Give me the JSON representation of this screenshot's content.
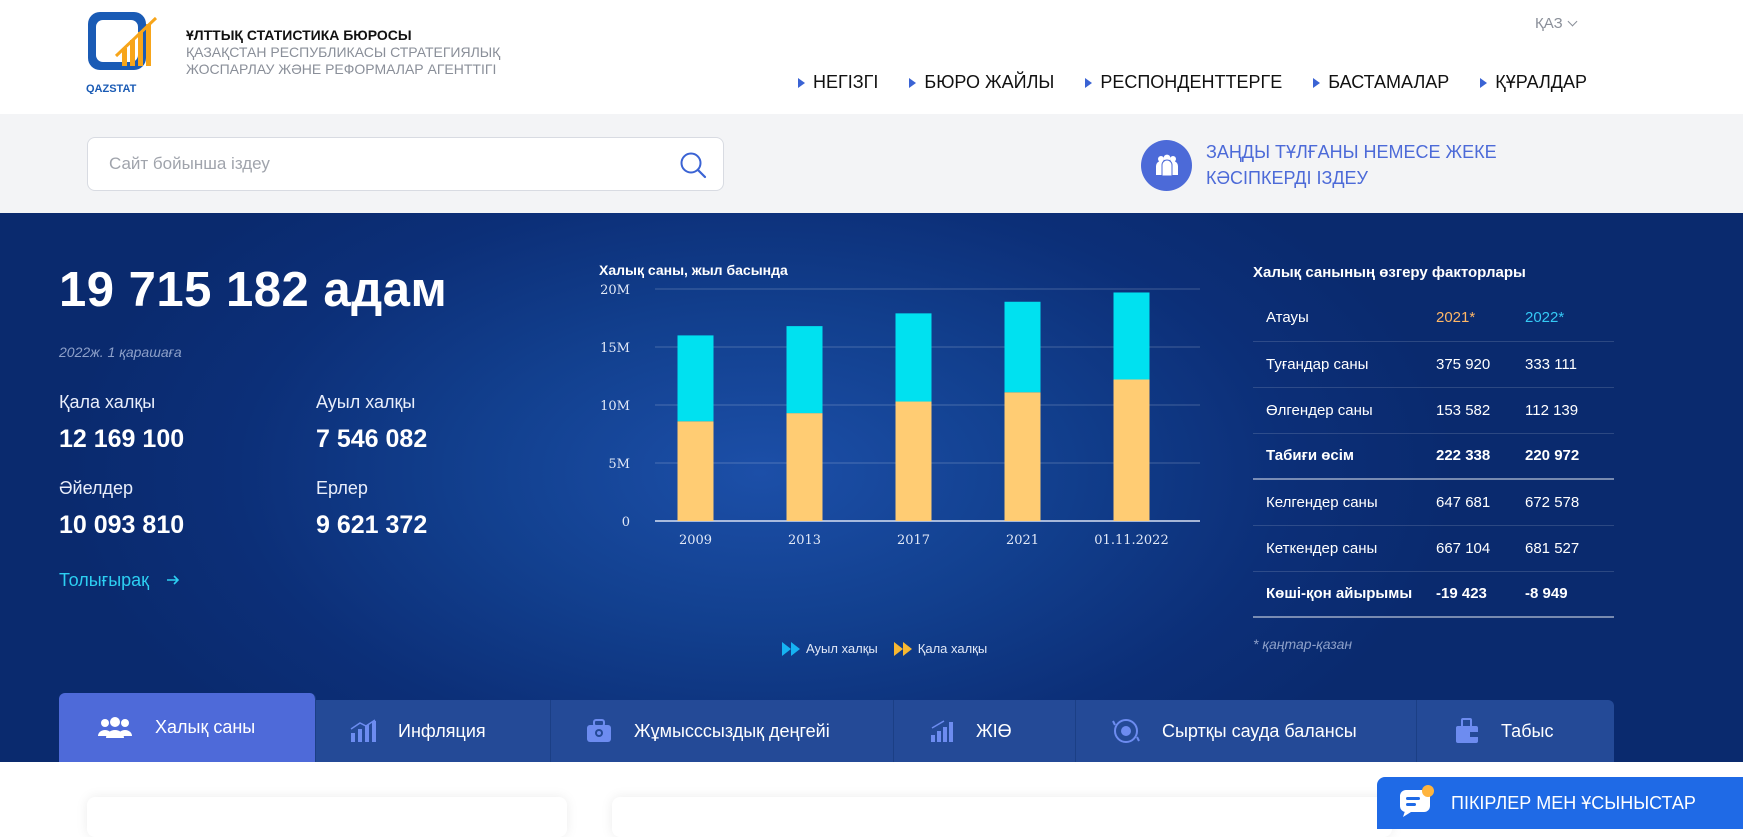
{
  "header": {
    "logo_text": "QAZSTAT",
    "org_line1": "ҰЛТТЫҚ СТАТИСТИКА БЮРОСЫ",
    "org_line2": "ҚАЗАҚСТАН РЕСПУБЛИКАСЫ СТРАТЕГИЯЛЫҚ",
    "org_line3": "ЖОСПАРЛАУ ЖӘНЕ РЕФОРМАЛАР АГЕНТТІГІ",
    "language": "ҚАЗ",
    "nav": [
      "НЕГІЗГІ",
      "БЮРО ЖАЙЛЫ",
      "РЕСПОНДЕНТТЕРГЕ",
      "БАСТАМАЛАР",
      "ҚҰРАЛДАР"
    ]
  },
  "search": {
    "placeholder": "Сайт бойынша іздеу",
    "legal_line1": "ЗАҢДЫ ТҰЛҒАНЫ НЕМЕСЕ ЖЕКЕ",
    "legal_line2": "КӘСІПКЕРДІ ІЗДЕУ"
  },
  "population": {
    "total": "19 715 182 адам",
    "as_of": "2022ж. 1 қарашаға",
    "urban_label": "Қала халқы",
    "urban_value": "12 169 100",
    "rural_label": "Ауыл халқы",
    "rural_value": "7 546 082",
    "women_label": "Әйелдер",
    "women_value": "10 093 810",
    "men_label": "Ерлер",
    "men_value": "9 621 372",
    "more_link": "Толығырақ"
  },
  "chart_data": {
    "type": "bar",
    "stacked": true,
    "title": "Халық саны, жыл басында",
    "categories": [
      "2009",
      "2013",
      "2017",
      "2021",
      "01.11.2022"
    ],
    "series": [
      {
        "name": "Қала халқы",
        "color": "#ffcc73",
        "values": [
          8.6,
          9.3,
          10.3,
          11.1,
          12.2
        ]
      },
      {
        "name": "Ауыл халқы",
        "color": "#00e1f0",
        "values": [
          7.4,
          7.5,
          7.6,
          7.8,
          7.5
        ]
      }
    ],
    "y_ticks": [
      "0",
      "5M",
      "10M",
      "15M",
      "20M"
    ],
    "ylim": [
      0,
      20
    ],
    "grid": true,
    "legend_position": "bottom"
  },
  "factors": {
    "title": "Халық санының өзгеру факторлары",
    "col_name": "Атауы",
    "col_2021": "2021*",
    "col_2022": "2022*",
    "rows": [
      {
        "name": "Туғандар саны",
        "v2021": "375 920",
        "v2022": "333 111"
      },
      {
        "name": "Өлгендер саны",
        "v2021": "153 582",
        "v2022": "112 139"
      },
      {
        "name": "Табиғи өсім",
        "v2021": "222 338",
        "v2022": "220 972"
      },
      {
        "name": "Келгендер саны",
        "v2021": "647 681",
        "v2022": "672 578"
      },
      {
        "name": "Кеткендер саны",
        "v2021": "667 104",
        "v2022": "681 527"
      },
      {
        "name": "Көші-қон айырымы",
        "v2021": "-19 423",
        "v2022": "-8 949"
      }
    ],
    "note": "* қаңтар-қазан"
  },
  "tabs": [
    {
      "label": "Халық саны",
      "icon": "people-icon"
    },
    {
      "label": "Инфляция",
      "icon": "chart-bars-icon"
    },
    {
      "label": "Жұмысссыздық деңгейі",
      "icon": "briefcase-icon"
    },
    {
      "label": "ЖІӨ",
      "icon": "growth-bars-icon"
    },
    {
      "label": "Сыртқы сауда балансы",
      "icon": "globe-exchange-icon"
    },
    {
      "label": "Табыс",
      "icon": "wallet-icon"
    }
  ],
  "feedback": {
    "label": "ПІКІРЛЕР МЕН ҰСЫНЫСТАР"
  },
  "colors": {
    "hero_bg": "#0c2f78",
    "accent_blue": "#4e6ad9",
    "urban_bar": "#ffcc73",
    "rural_bar": "#00e1f0",
    "link_cyan": "#2ccff2"
  }
}
